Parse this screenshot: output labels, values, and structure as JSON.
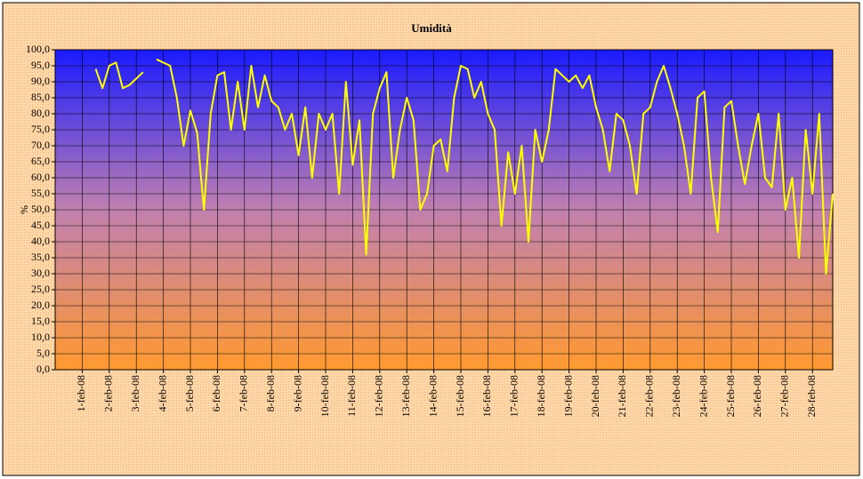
{
  "chart_data": {
    "type": "line",
    "title": "Umidità",
    "y_label": "%",
    "categories": [
      null,
      null,
      null,
      null,
      "1-feb-08",
      null,
      null,
      null,
      "2-feb-08",
      null,
      null,
      null,
      "3-feb-08",
      null,
      null,
      null,
      "4-feb-08",
      null,
      null,
      null,
      "5-feb-08",
      null,
      null,
      null,
      "6-feb-08",
      null,
      null,
      null,
      "7-feb-08",
      null,
      null,
      null,
      "8-feb-08",
      null,
      null,
      null,
      "9-feb-08",
      null,
      null,
      null,
      "10-feb-08",
      null,
      null,
      null,
      "11-feb-08",
      null,
      null,
      null,
      "12-feb-08",
      null,
      null,
      null,
      "13-feb-08",
      null,
      null,
      null,
      "14-feb-08",
      null,
      null,
      null,
      "15-feb-08",
      null,
      null,
      null,
      "16-feb-08",
      null,
      null,
      null,
      "17-feb-08",
      null,
      null,
      null,
      "18-feb-08",
      null,
      null,
      null,
      "19-feb-08",
      null,
      null,
      null,
      "20-feb-08",
      null,
      null,
      null,
      "21-feb-08",
      null,
      null,
      null,
      "22-feb-08",
      null,
      null,
      null,
      "23-feb-08",
      null,
      null,
      null,
      "24-feb-08",
      null,
      null,
      null,
      "25-feb-08",
      null,
      null,
      null,
      "26-feb-08",
      null,
      null,
      null,
      "27-feb-08",
      null,
      null,
      null,
      "28-feb-08",
      null,
      null,
      null
    ],
    "series": [
      {
        "name": "Umidità",
        "color": "#ffff00",
        "values": [
          null,
          null,
          null,
          null,
          null,
          null,
          94,
          88,
          95,
          96,
          88,
          89,
          91,
          93,
          null,
          97,
          96,
          95,
          85,
          70,
          81,
          74,
          50,
          80,
          92,
          93,
          75,
          90,
          75,
          95,
          82,
          92,
          84,
          82,
          75,
          80,
          67,
          82,
          60,
          80,
          75,
          80,
          55,
          90,
          64,
          78,
          36,
          80,
          88,
          93,
          60,
          75,
          85,
          78,
          50,
          55,
          70,
          72,
          62,
          85,
          95,
          94,
          85,
          90,
          80,
          75,
          45,
          68,
          55,
          70,
          40,
          75,
          65,
          75,
          94,
          92,
          90,
          92,
          88,
          92,
          82,
          75,
          62,
          80,
          78,
          70,
          55,
          80,
          82,
          90,
          95,
          88,
          80,
          70,
          55,
          85,
          87,
          60,
          43,
          82,
          84,
          70,
          58,
          70,
          80,
          60,
          57,
          80,
          50,
          60,
          35,
          75,
          55,
          80,
          30,
          55
        ]
      }
    ],
    "ylim": [
      0,
      100
    ],
    "yticks": [
      {
        "value": 0,
        "label": "0,0"
      },
      {
        "value": 5,
        "label": "5,0"
      },
      {
        "value": 10,
        "label": "10,0"
      },
      {
        "value": 15,
        "label": "15,0"
      },
      {
        "value": 20,
        "label": "20,0"
      },
      {
        "value": 25,
        "label": "25,0"
      },
      {
        "value": 30,
        "label": "30,0"
      },
      {
        "value": 35,
        "label": "35,0"
      },
      {
        "value": 40,
        "label": "40,0"
      },
      {
        "value": 45,
        "label": "45,0"
      },
      {
        "value": 50,
        "label": "50,0"
      },
      {
        "value": 55,
        "label": "55,0"
      },
      {
        "value": 60,
        "label": "60,0"
      },
      {
        "value": 65,
        "label": "65,0"
      },
      {
        "value": 70,
        "label": "70,0"
      },
      {
        "value": 75,
        "label": "75,0"
      },
      {
        "value": 80,
        "label": "80,0"
      },
      {
        "value": 85,
        "label": "85,0"
      },
      {
        "value": 90,
        "label": "90,0"
      },
      {
        "value": 95,
        "label": "95,0"
      },
      {
        "value": 100,
        "label": "100,0"
      }
    ],
    "grid": true
  }
}
